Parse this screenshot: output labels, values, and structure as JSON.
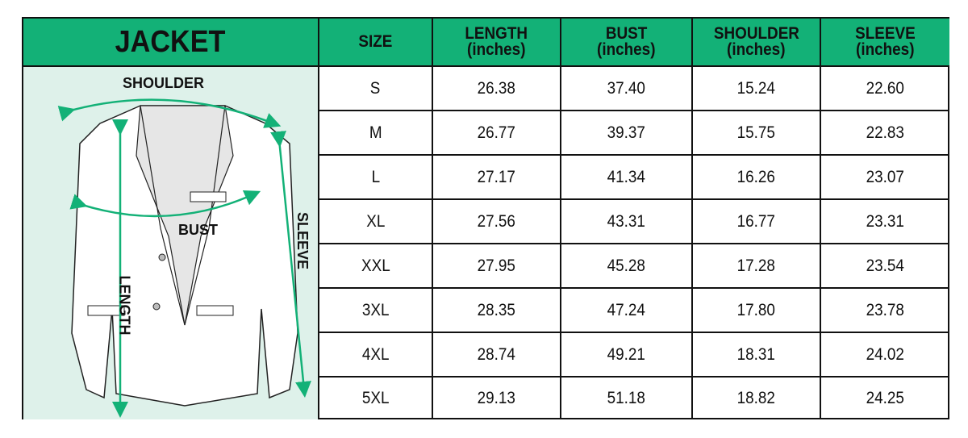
{
  "title": "JACKET",
  "headers": [
    {
      "label": "SIZE",
      "unit": ""
    },
    {
      "label": "LENGTH",
      "unit": "(inches)"
    },
    {
      "label": "BUST",
      "unit": "(inches)"
    },
    {
      "label": "SHOULDER",
      "unit": "(inches)"
    },
    {
      "label": "SLEEVE",
      "unit": "(inches)"
    }
  ],
  "rows": [
    [
      "S",
      "26.38",
      "37.40",
      "15.24",
      "22.60"
    ],
    [
      "M",
      "26.77",
      "39.37",
      "15.75",
      "22.83"
    ],
    [
      "L",
      "27.17",
      "41.34",
      "16.26",
      "23.07"
    ],
    [
      "XL",
      "27.56",
      "43.31",
      "16.77",
      "23.31"
    ],
    [
      "XXL",
      "27.95",
      "45.28",
      "17.28",
      "23.54"
    ],
    [
      "3XL",
      "28.35",
      "47.24",
      "17.80",
      "23.78"
    ],
    [
      "4XL",
      "28.74",
      "49.21",
      "18.31",
      "24.02"
    ],
    [
      "5XL",
      "29.13",
      "51.18",
      "18.82",
      "24.25"
    ]
  ],
  "diagram_labels": {
    "shoulder": "SHOULDER",
    "bust": "BUST",
    "length": "LENGTH",
    "sleeve": "SLEEVE"
  },
  "colors": {
    "header": "#13b177",
    "panel": "#def1ea",
    "arrow": "#13b177"
  }
}
